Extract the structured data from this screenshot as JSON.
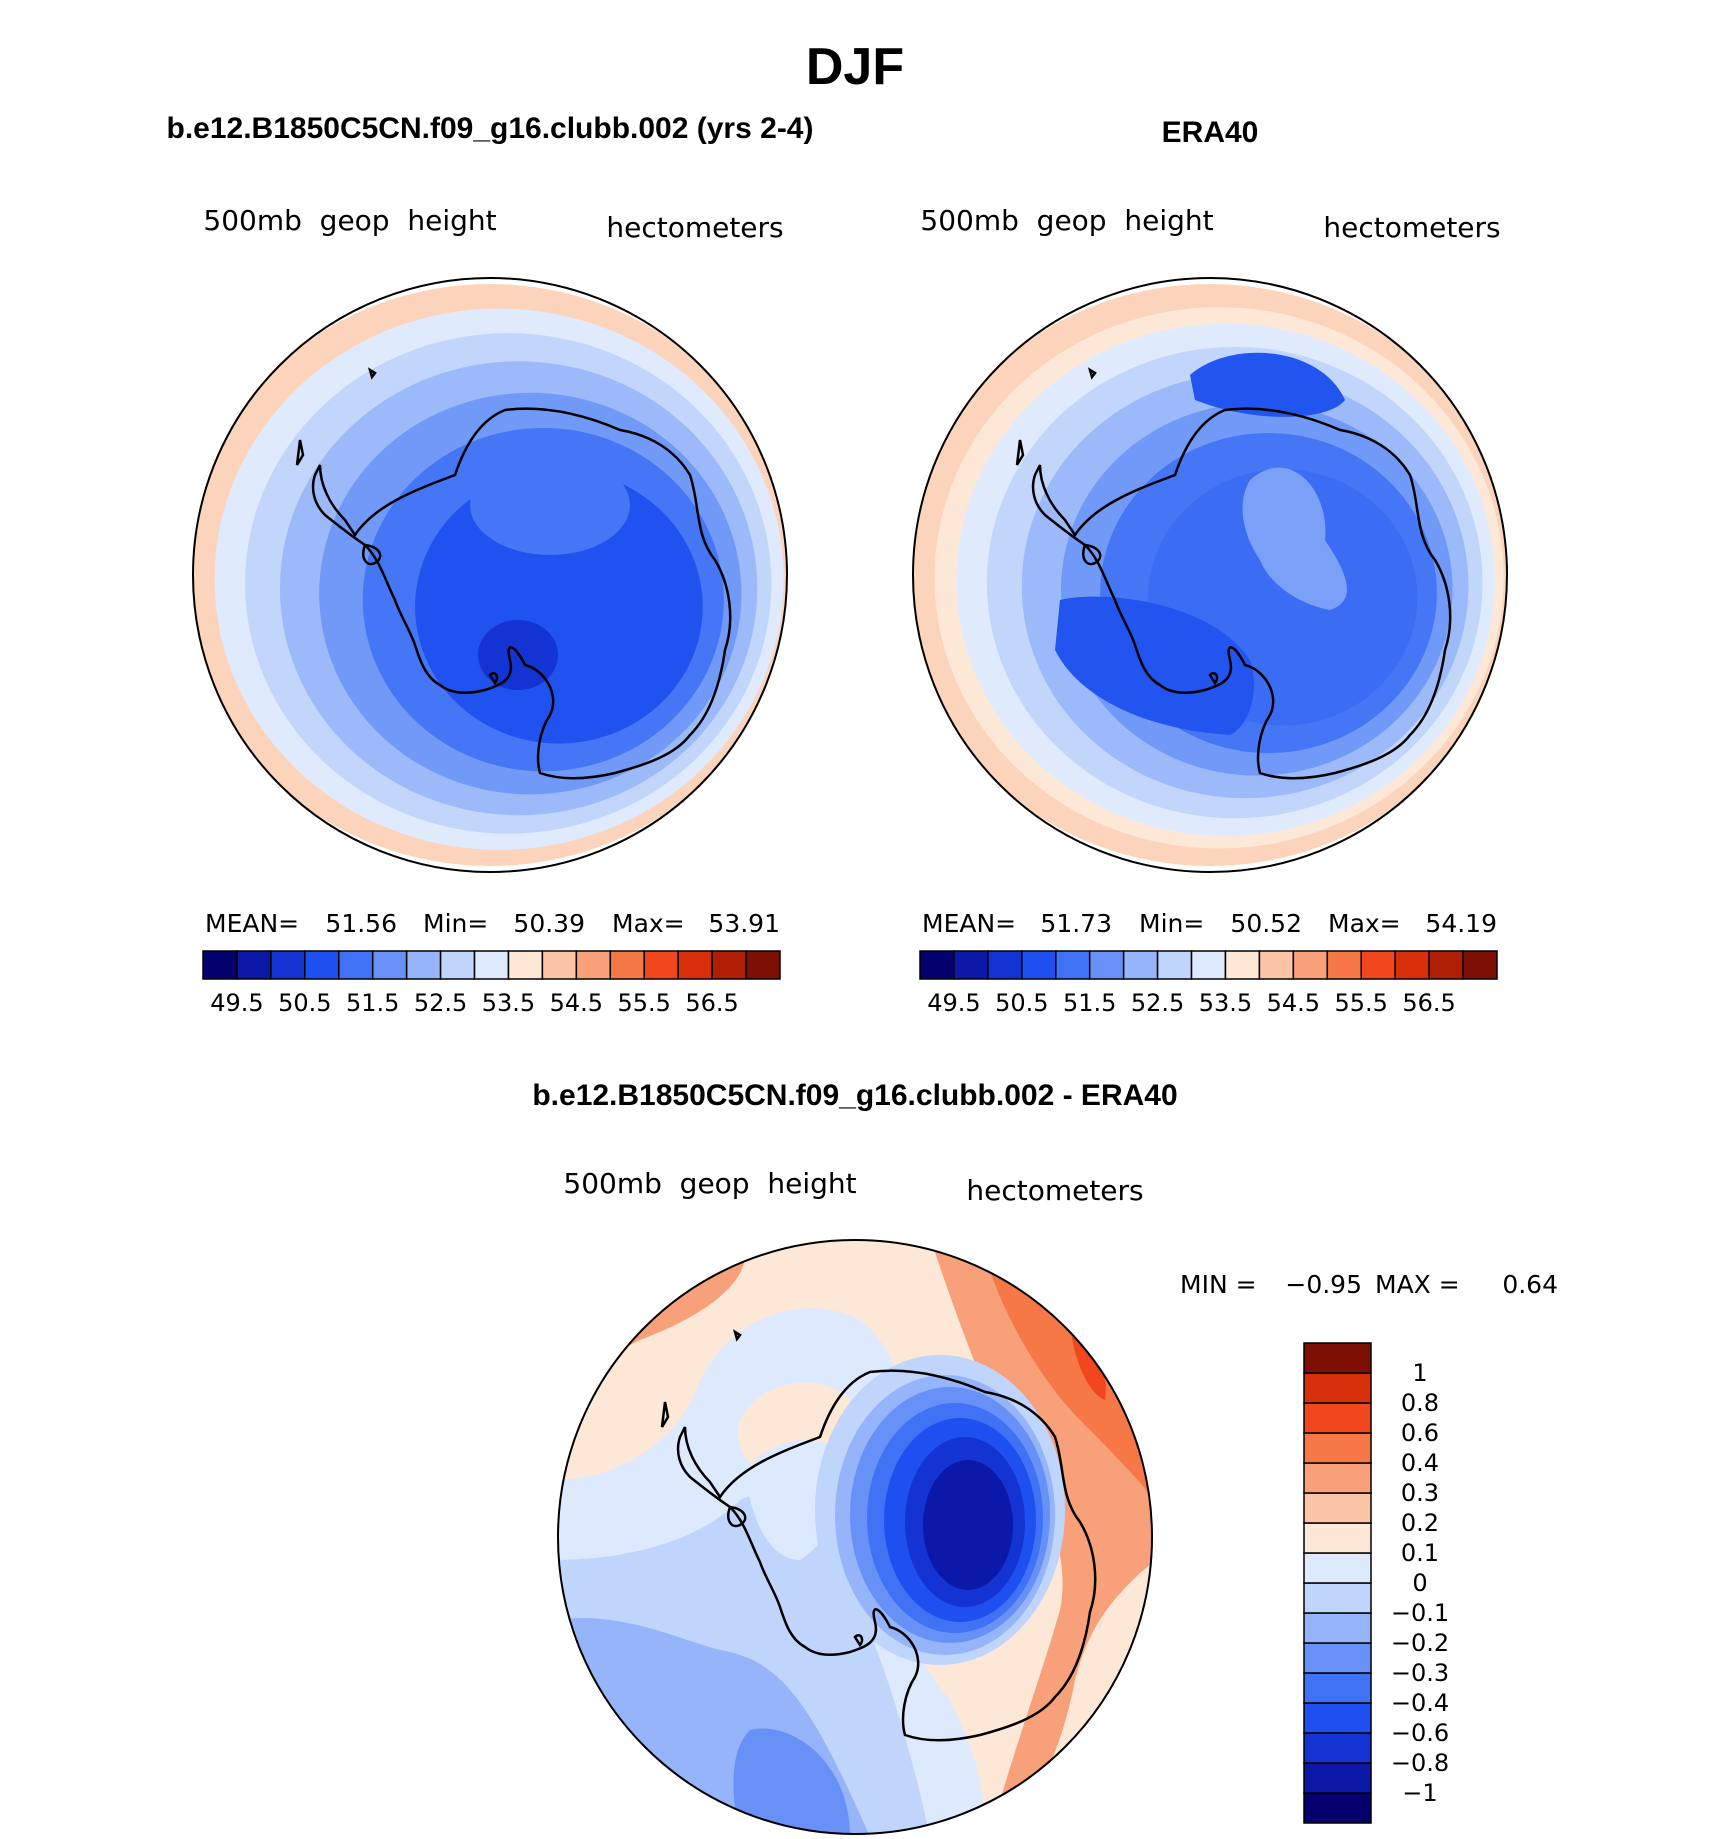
{
  "title": "DJF",
  "chart_data": [
    {
      "type": "heatmap",
      "projection": "south-polar-stereographic",
      "title": "b.e12.B1850C5CN.f09_g16.clubb.002 (yrs 2-4)",
      "variable": "500mb  geop  height",
      "units": "hectometers",
      "stats": {
        "mean_label": "MEAN=",
        "mean": "51.56",
        "min_label": "Min=",
        "min": "50.39",
        "max_label": "Max=",
        "max": "53.91"
      },
      "colorbar": {
        "orientation": "horizontal",
        "levels": [
          "49.5",
          "50.5",
          "51.5",
          "52.5",
          "53.5",
          "54.5",
          "55.5",
          "56.5"
        ],
        "colors": [
          "#04006e",
          "#0b18a8",
          "#1433d3",
          "#1e4ff0",
          "#3f72f5",
          "#6891f7",
          "#95b4f9",
          "#c0d5fb",
          "#dde9fd",
          "#fde7d7",
          "#fbc4a6",
          "#f8a07a",
          "#f67846",
          "#f0471f",
          "#d62f0a",
          "#b01e06",
          "#7d0f04"
        ]
      },
      "contour_bands": [
        {
          "r": 1.0,
          "color": "#fcd4bb"
        },
        {
          "r": 0.93,
          "color": "#dfeafd"
        },
        {
          "r": 0.86,
          "color": "#c2d6fb"
        },
        {
          "r": 0.78,
          "color": "#9cbafa"
        },
        {
          "r": 0.69,
          "color": "#7099f8"
        },
        {
          "r": 0.59,
          "color": "#4476f5"
        },
        {
          "r": 0.47,
          "color": "#1f52ef"
        }
      ]
    },
    {
      "type": "heatmap",
      "projection": "south-polar-stereographic",
      "title": "ERA40",
      "variable": "500mb  geop  height",
      "units": "hectometers",
      "stats": {
        "mean_label": "MEAN=",
        "mean": "51.73",
        "min_label": "Min=",
        "min": "50.52",
        "max_label": "Max=",
        "max": "54.19"
      },
      "colorbar": {
        "orientation": "horizontal",
        "levels": [
          "49.5",
          "50.5",
          "51.5",
          "52.5",
          "53.5",
          "54.5",
          "55.5",
          "56.5"
        ],
        "colors": [
          "#04006e",
          "#0b18a8",
          "#1433d3",
          "#1e4ff0",
          "#3f72f5",
          "#6891f7",
          "#95b4f9",
          "#c0d5fb",
          "#dde9fd",
          "#fde7d7",
          "#fbc4a6",
          "#f8a07a",
          "#f67846",
          "#f0471f",
          "#d62f0a",
          "#b01e06",
          "#7d0f04"
        ]
      },
      "contour_bands": [
        {
          "r": 1.0,
          "color": "#fcd4bb"
        },
        {
          "r": 0.93,
          "color": "#fde8d8"
        },
        {
          "r": 0.88,
          "color": "#dfeafd"
        },
        {
          "r": 0.81,
          "color": "#c2d6fb"
        },
        {
          "r": 0.73,
          "color": "#9cbafa"
        },
        {
          "r": 0.64,
          "color": "#7099f8"
        },
        {
          "r": 0.55,
          "color": "#4476f5"
        },
        {
          "r": 0.44,
          "color": "#3b6cf4"
        }
      ]
    },
    {
      "type": "heatmap",
      "projection": "south-polar-stereographic",
      "title": "b.e12.B1850C5CN.f09_g16.clubb.002 - ERA40",
      "variable": "500mb  geop  height",
      "units": "hectometers",
      "stats": {
        "min_label": "MIN =",
        "min": "−0.95",
        "max_label": "MAX =",
        "max": "0.64"
      },
      "colorbar": {
        "orientation": "vertical",
        "levels": [
          "−1",
          "−0.8",
          "−0.6",
          "−0.4",
          "−0.3",
          "−0.2",
          "−0.1",
          "0",
          "0.1",
          "0.2",
          "0.3",
          "0.4",
          "0.6",
          "0.8",
          "1"
        ],
        "colors": [
          "#04006e",
          "#0b18a8",
          "#1433d3",
          "#1e4ff0",
          "#3f72f5",
          "#6891f7",
          "#95b4f9",
          "#c0d5fb",
          "#dde9fd",
          "#fde7d7",
          "#fbc4a6",
          "#f8a07a",
          "#f67846",
          "#f0471f",
          "#d62f0a",
          "#7d0f04"
        ]
      }
    }
  ]
}
